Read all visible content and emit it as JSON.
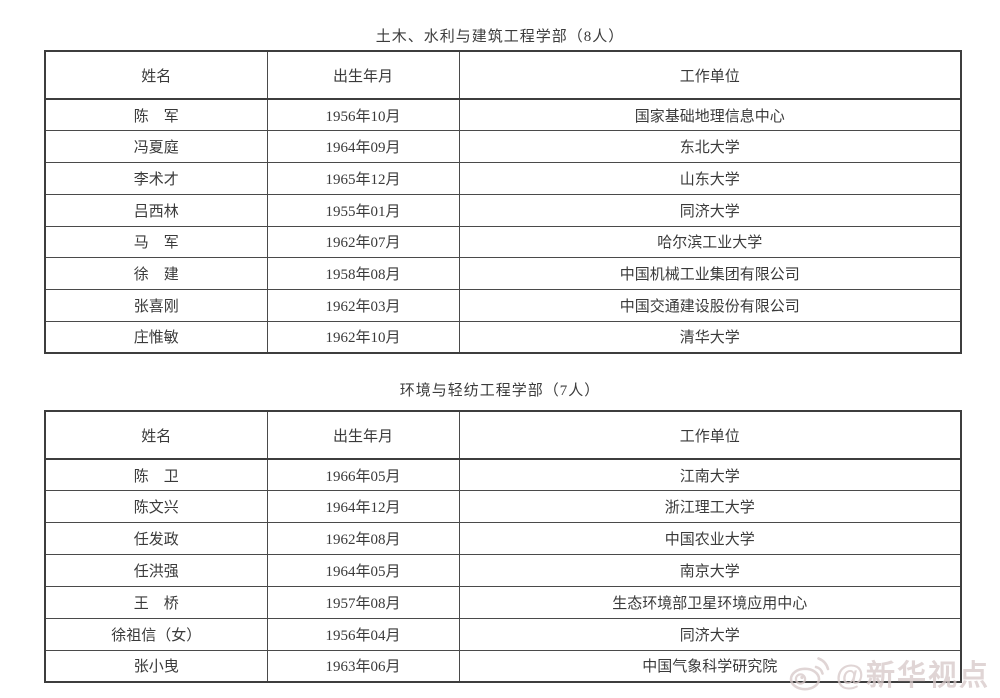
{
  "page": {
    "background": "#ffffff",
    "text_color": "#3a3a3a",
    "border_color": "#3d3d3d"
  },
  "sections": [
    {
      "title": "土木、水利与建筑工程学部（8人）",
      "headers": [
        "姓名",
        "出生年月",
        "工作单位"
      ],
      "rows": [
        [
          "陈　军",
          "1956年10月",
          "国家基础地理信息中心"
        ],
        [
          "冯夏庭",
          "1964年09月",
          "东北大学"
        ],
        [
          "李术才",
          "1965年12月",
          "山东大学"
        ],
        [
          "吕西林",
          "1955年01月",
          "同济大学"
        ],
        [
          "马　军",
          "1962年07月",
          "哈尔滨工业大学"
        ],
        [
          "徐　建",
          "1958年08月",
          "中国机械工业集团有限公司"
        ],
        [
          "张喜刚",
          "1962年03月",
          "中国交通建设股份有限公司"
        ],
        [
          "庄惟敏",
          "1962年10月",
          "清华大学"
        ]
      ]
    },
    {
      "title": "环境与轻纺工程学部（7人）",
      "headers": [
        "姓名",
        "出生年月",
        "工作单位"
      ],
      "rows": [
        [
          "陈　卫",
          "1966年05月",
          "江南大学"
        ],
        [
          "陈文兴",
          "1964年12月",
          "浙江理工大学"
        ],
        [
          "任发政",
          "1962年08月",
          "中国农业大学"
        ],
        [
          "任洪强",
          "1964年05月",
          "南京大学"
        ],
        [
          "王　桥",
          "1957年08月",
          "生态环境部卫星环境应用中心"
        ],
        [
          "徐祖信（女）",
          "1956年04月",
          "同济大学"
        ],
        [
          "张小曳",
          "1963年06月",
          "中国气象科学研究院"
        ]
      ]
    }
  ],
  "watermark": {
    "icon": "weibo-icon",
    "text": "@新华视点",
    "color": "#d6c8c8"
  }
}
